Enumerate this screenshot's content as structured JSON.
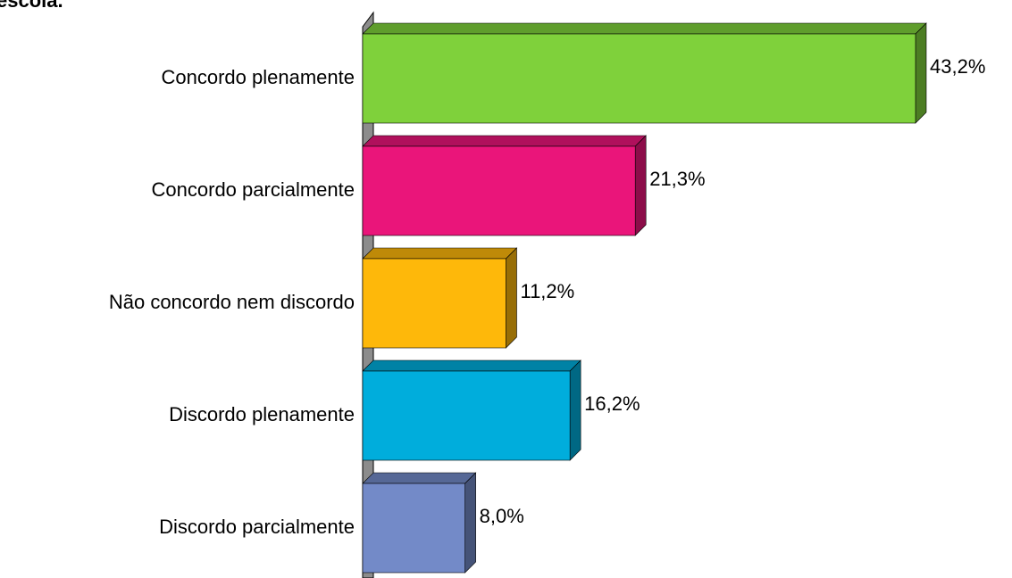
{
  "chart_data": {
    "type": "bar",
    "orientation": "horizontal",
    "title": "escola.",
    "categories": [
      "Concordo plenamente",
      "Concordo parcialmente",
      "Não concordo nem discordo",
      "Discordo plenamente",
      "Discordo parcialmente"
    ],
    "values": [
      43.2,
      21.3,
      11.2,
      16.2,
      8.0
    ],
    "value_labels": [
      "43,2%",
      "21,3%",
      "11,2%",
      "16,2%",
      "8,0%"
    ],
    "colors": [
      "#7fd13b",
      "#ea157a",
      "#feb80a",
      "#00addc",
      "#738ac8"
    ]
  }
}
